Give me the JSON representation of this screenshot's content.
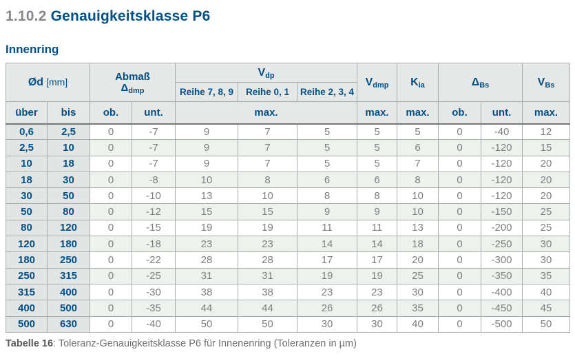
{
  "page": {
    "section_number": "1.10.2",
    "section_title": "Genauigkeitsklasse P6",
    "subtitle": "Innenring"
  },
  "colors": {
    "brand_blue": "#004f85",
    "header_bg": "#e6e7e7",
    "row_green": "#edf3ec",
    "data_text": "#7c7f82"
  },
  "table": {
    "header": {
      "col_d": {
        "main": "Ød",
        "unit": "[mm]"
      },
      "col_abmass": {
        "line1": "Abmaß",
        "symbol": "Δ",
        "symbol_sub": "dmp"
      },
      "col_vdp": {
        "main": "V",
        "sub": "dp"
      },
      "vdp_series": [
        "Reihe 7, 8, 9",
        "Reihe 0, 1",
        "Reihe 2, 3, 4"
      ],
      "col_vdmp": {
        "main": "V",
        "sub": "dmp"
      },
      "col_kia": {
        "main": "K",
        "sub": "ia"
      },
      "col_dbs": {
        "main": "Δ",
        "sub": "Bs"
      },
      "col_vbs": {
        "main": "V",
        "sub": "Bs"
      },
      "sub_labels": {
        "ueber": "über",
        "bis": "bis",
        "ob": "ob.",
        "unt": "unt.",
        "max": "max."
      }
    },
    "rows": [
      [
        "0,6",
        "2,5",
        "0",
        "-7",
        "9",
        "7",
        "5",
        "5",
        "5",
        "0",
        "-40",
        "12"
      ],
      [
        "2,5",
        "10",
        "0",
        "-7",
        "9",
        "7",
        "5",
        "5",
        "6",
        "0",
        "-120",
        "15"
      ],
      [
        "10",
        "18",
        "0",
        "-7",
        "9",
        "7",
        "5",
        "5",
        "7",
        "0",
        "-120",
        "20"
      ],
      [
        "18",
        "30",
        "0",
        "-8",
        "10",
        "8",
        "6",
        "6",
        "8",
        "0",
        "-120",
        "20"
      ],
      [
        "30",
        "50",
        "0",
        "-10",
        "13",
        "10",
        "8",
        "8",
        "10",
        "0",
        "-120",
        "20"
      ],
      [
        "50",
        "80",
        "0",
        "-12",
        "15",
        "15",
        "9",
        "9",
        "10",
        "0",
        "-150",
        "25"
      ],
      [
        "80",
        "120",
        "0",
        "-15",
        "19",
        "19",
        "11",
        "11",
        "13",
        "0",
        "-200",
        "25"
      ],
      [
        "120",
        "180",
        "0",
        "-18",
        "23",
        "23",
        "14",
        "14",
        "18",
        "0",
        "-250",
        "30"
      ],
      [
        "180",
        "250",
        "0",
        "-22",
        "28",
        "28",
        "17",
        "17",
        "20",
        "0",
        "-300",
        "30"
      ],
      [
        "250",
        "315",
        "0",
        "-25",
        "31",
        "31",
        "19",
        "19",
        "25",
        "0",
        "-350",
        "35"
      ],
      [
        "315",
        "400",
        "0",
        "-30",
        "38",
        "38",
        "23",
        "23",
        "30",
        "0",
        "-400",
        "40"
      ],
      [
        "400",
        "500",
        "0",
        "-35",
        "44",
        "44",
        "26",
        "26",
        "35",
        "0",
        "-450",
        "45"
      ],
      [
        "500",
        "630",
        "0",
        "-40",
        "50",
        "50",
        "30",
        "30",
        "40",
        "0",
        "-500",
        "50"
      ]
    ]
  },
  "caption": {
    "label": "Tabelle 16",
    "text": ": Toleranz-Genauigkeitsklasse P6 für Innenenring (Toleranzen in µm)"
  }
}
